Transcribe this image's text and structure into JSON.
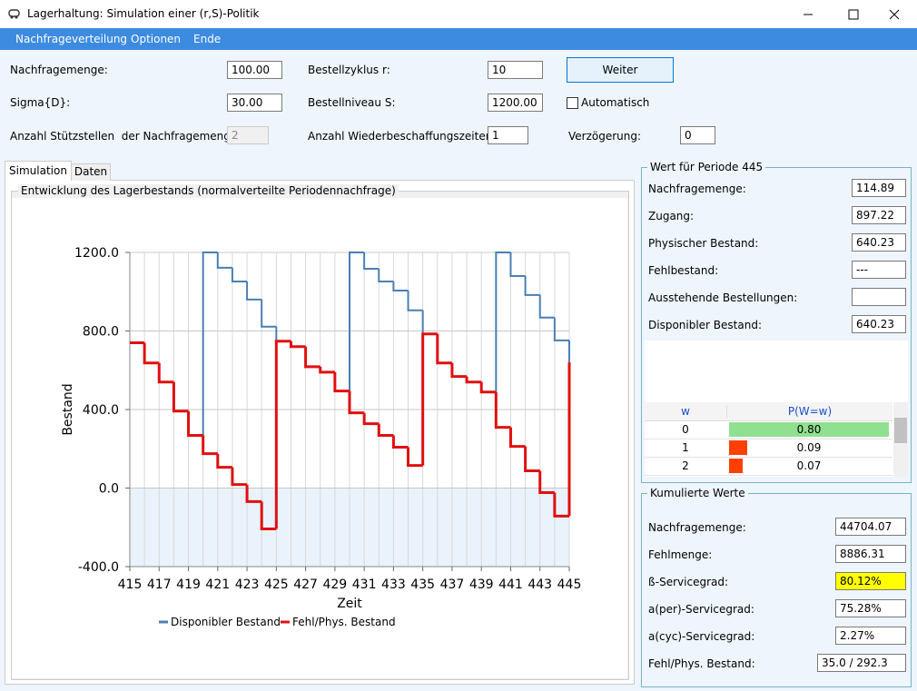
{
  "window": {
    "title": "Lagerhaltung: Simulation einer (r,S)-Politik"
  },
  "menu": [
    "Nachfrageverteilung",
    "Optionen",
    "Ende"
  ],
  "form": {
    "demand": {
      "label": "Nachfragemenge:",
      "value": "100.00"
    },
    "cycle": {
      "label": "Bestellzyklus r:",
      "value": "10"
    },
    "button": "Weiter",
    "sigma": {
      "label": "Sigma{D}:",
      "value": "30.00"
    },
    "level": {
      "label": "Bestellniveau S:",
      "value": "1200.00"
    },
    "auto": "Automatisch",
    "support": {
      "label": "Anzahl Stützstellen  der Nachfragemenge:",
      "value": "2"
    },
    "leadtimes": {
      "label": "Anzahl Wiederbeschaffungszeiten:",
      "value": "1"
    },
    "delay": {
      "label": "Verzögerung:",
      "value": "0"
    }
  },
  "tabs": [
    "Simulation",
    "Daten"
  ],
  "chart_data": {
    "type": "line",
    "step": true,
    "grid": true,
    "title": "Entwicklung des Lagerbestands (normalverteilte Periodennachfrage)",
    "xlabel": "Zeit",
    "ylabel": "Bestand",
    "x": [
      415,
      416,
      417,
      418,
      419,
      420,
      421,
      422,
      423,
      424,
      425,
      426,
      427,
      428,
      429,
      430,
      431,
      432,
      433,
      434,
      435,
      436,
      437,
      438,
      439,
      440,
      441,
      442,
      443,
      444,
      445
    ],
    "xlim": [
      415,
      445
    ],
    "xticks": [
      415,
      417,
      419,
      421,
      423,
      425,
      427,
      429,
      431,
      433,
      435,
      437,
      439,
      441,
      443,
      445
    ],
    "ylim": [
      -400,
      1200
    ],
    "yticks": [
      {
        "value": -400,
        "label": "-400.0"
      },
      {
        "value": 0,
        "label": "0.0"
      },
      {
        "value": 400,
        "label": "400.0"
      },
      {
        "value": 800,
        "label": "800.0"
      },
      {
        "value": 1200,
        "label": "1200.0"
      }
    ],
    "series": [
      {
        "name": "Disponibler Bestand",
        "color": "#4a7fb5",
        "values": [
          740,
          637,
          540,
          392,
          268,
          1200,
          1122,
          1052,
          960,
          822,
          748,
          720,
          618,
          590,
          494,
          1200,
          1117,
          1052,
          1006,
          905,
          785,
          637,
          568,
          540,
          489,
          1200,
          1080,
          983,
          868,
          752,
          640
        ]
      },
      {
        "name": "Fehl/Phys. Bestand",
        "color": "#e01010",
        "values": [
          740,
          637,
          540,
          392,
          268,
          175,
          106,
          18,
          -69,
          -208,
          748,
          720,
          618,
          590,
          494,
          383,
          328,
          268,
          208,
          115,
          785,
          637,
          568,
          540,
          489,
          309,
          212,
          88,
          -23,
          -143,
          640
        ]
      }
    ]
  },
  "period": {
    "title": "Wert für Periode 445",
    "fields": [
      {
        "label": "Nachfragemenge:",
        "value": "114.89"
      },
      {
        "label": "Zugang:",
        "value": "897.22"
      },
      {
        "label": "Physischer Bestand:",
        "value": "640.23"
      },
      {
        "label": "Fehlbestand:",
        "value": "---"
      },
      {
        "label": "Ausstehende Bestellungen:"
      },
      {
        "label": "Disponibler Bestand:",
        "value": "640.23"
      }
    ],
    "table": {
      "columns": [
        "w",
        "P(W=w)"
      ],
      "rows": [
        {
          "w": 0,
          "p": {
            "value": 0.8,
            "label": "0.80"
          }
        },
        {
          "w": 1,
          "p": 0.09
        },
        {
          "w": 2,
          "p": 0.07
        }
      ]
    }
  },
  "cumulative": {
    "title": "Kumulierte Werte",
    "fields": [
      {
        "label": "Nachfragemenge:",
        "value": "44704.07"
      },
      {
        "label": "Fehlmenge:",
        "value": "8886.31"
      },
      {
        "label": "ß-Servicegrad:",
        "value": "80.12%"
      },
      {
        "label": "a(per)-Servicegrad:",
        "value": "75.28%"
      },
      {
        "label": "a(cyc)-Servicegrad:",
        "value": "2.27%"
      },
      {
        "label": "Fehl/Phys. Bestand:",
        "value": "35.0 / 292.3"
      }
    ]
  }
}
